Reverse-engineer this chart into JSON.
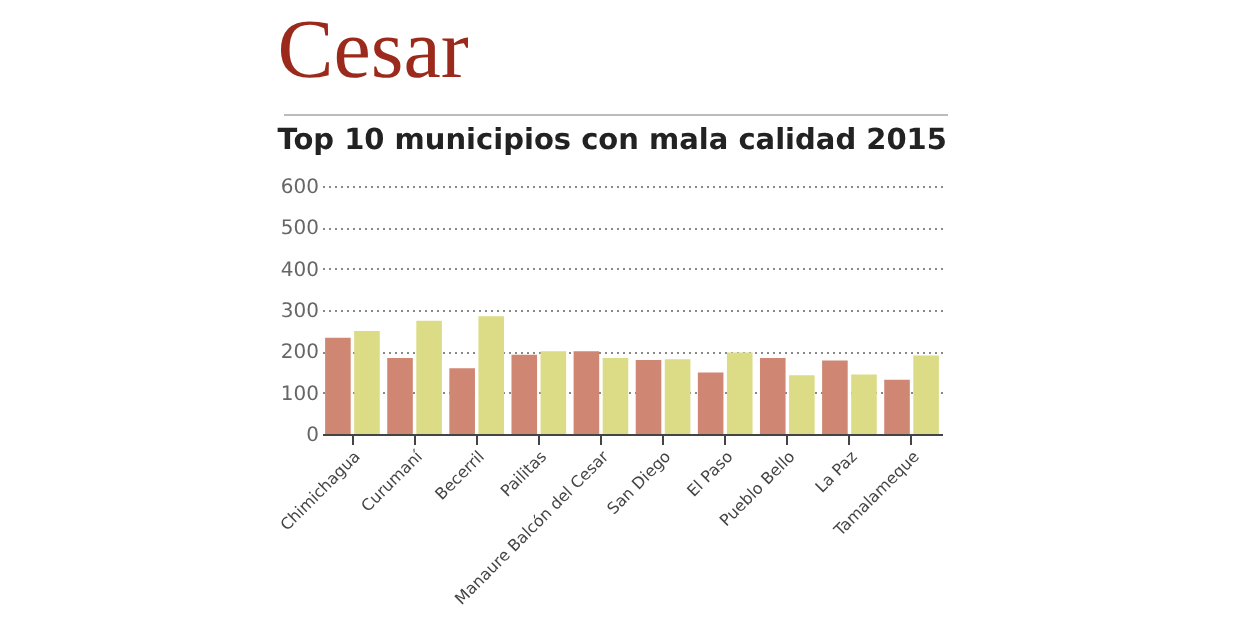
{
  "chart_data": {
    "type": "bar",
    "title": "Cesar",
    "subtitle": "Top 10 municipios con mala calidad 2015",
    "categories": [
      "Chimichagua",
      "Curumaní",
      "Becerril",
      "Pailitas",
      "Manaure Balcón del Cesar",
      "San Diego",
      "El Paso",
      "Pueblo Bello",
      "La Paz",
      "Tamalameque"
    ],
    "series": [
      {
        "color": "#cf8672",
        "values": [
          233,
          184,
          159,
          192,
          200,
          179,
          149,
          184,
          178,
          131
        ]
      },
      {
        "color": "#dcdb86",
        "values": [
          249,
          274,
          285,
          200,
          184,
          181,
          197,
          142,
          144,
          190
        ]
      }
    ],
    "ylim": [
      0,
      600
    ],
    "yticks": [
      0,
      100,
      200,
      300,
      400,
      500,
      600
    ],
    "grid": "y",
    "legend": false
  }
}
